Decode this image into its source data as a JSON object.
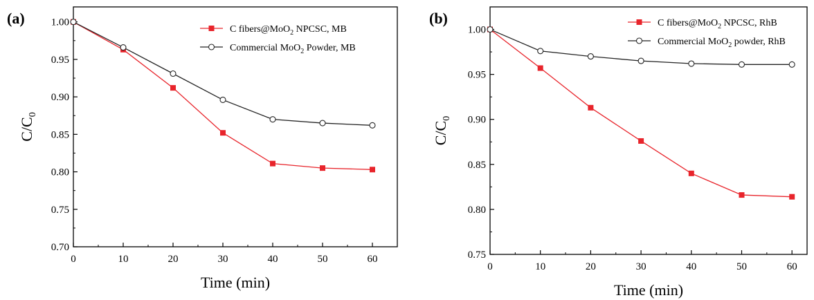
{
  "chart_data": [
    {
      "type": "line",
      "panel_label": "(a)",
      "xlabel": "Time (min)",
      "ylabel": "C/C",
      "ylabel_sub": "0",
      "xlim": [
        0,
        65
      ],
      "ylim": [
        0.7,
        1.02
      ],
      "x_ticks": [
        0,
        10,
        20,
        30,
        40,
        50,
        60
      ],
      "y_ticks": [
        0.7,
        0.75,
        0.8,
        0.85,
        0.9,
        0.95,
        1.0
      ],
      "legend_position": "top-right",
      "x": [
        0,
        10,
        20,
        30,
        40,
        50,
        60
      ],
      "series": [
        {
          "name": "C fibers@MoO",
          "name_sub": "2",
          "name_suffix": " NPCSC, MB",
          "marker": "filled-square",
          "color": "#e8242b",
          "values": [
            1.0,
            0.963,
            0.912,
            0.852,
            0.811,
            0.805,
            0.803
          ]
        },
        {
          "name": "Commercial MoO",
          "name_sub": "2",
          "name_suffix": "  Powder, MB",
          "marker": "open-circle",
          "color": "#222222",
          "values": [
            1.0,
            0.966,
            0.931,
            0.896,
            0.87,
            0.865,
            0.862
          ]
        }
      ]
    },
    {
      "type": "line",
      "panel_label": "(b)",
      "xlabel": "Time (min)",
      "ylabel": "C/C",
      "ylabel_sub": "0",
      "xlim": [
        0,
        63
      ],
      "ylim": [
        0.75,
        1.025
      ],
      "x_ticks": [
        0,
        10,
        20,
        30,
        40,
        50,
        60
      ],
      "y_ticks": [
        0.75,
        0.8,
        0.85,
        0.9,
        0.95,
        1.0
      ],
      "legend_position": "top-right",
      "x": [
        0,
        10,
        20,
        30,
        40,
        50,
        60
      ],
      "series": [
        {
          "name": "C fibers@MoO",
          "name_sub": "2",
          "name_suffix": " NPCSC, RhB",
          "marker": "filled-square",
          "color": "#e8242b",
          "values": [
            1.0,
            0.957,
            0.913,
            0.876,
            0.84,
            0.816,
            0.814
          ]
        },
        {
          "name": "Commercial MoO",
          "name_sub": "2",
          "name_suffix": " powder, RhB",
          "marker": "open-circle",
          "color": "#222222",
          "values": [
            1.0,
            0.976,
            0.97,
            0.965,
            0.962,
            0.961,
            0.961
          ]
        }
      ]
    }
  ]
}
